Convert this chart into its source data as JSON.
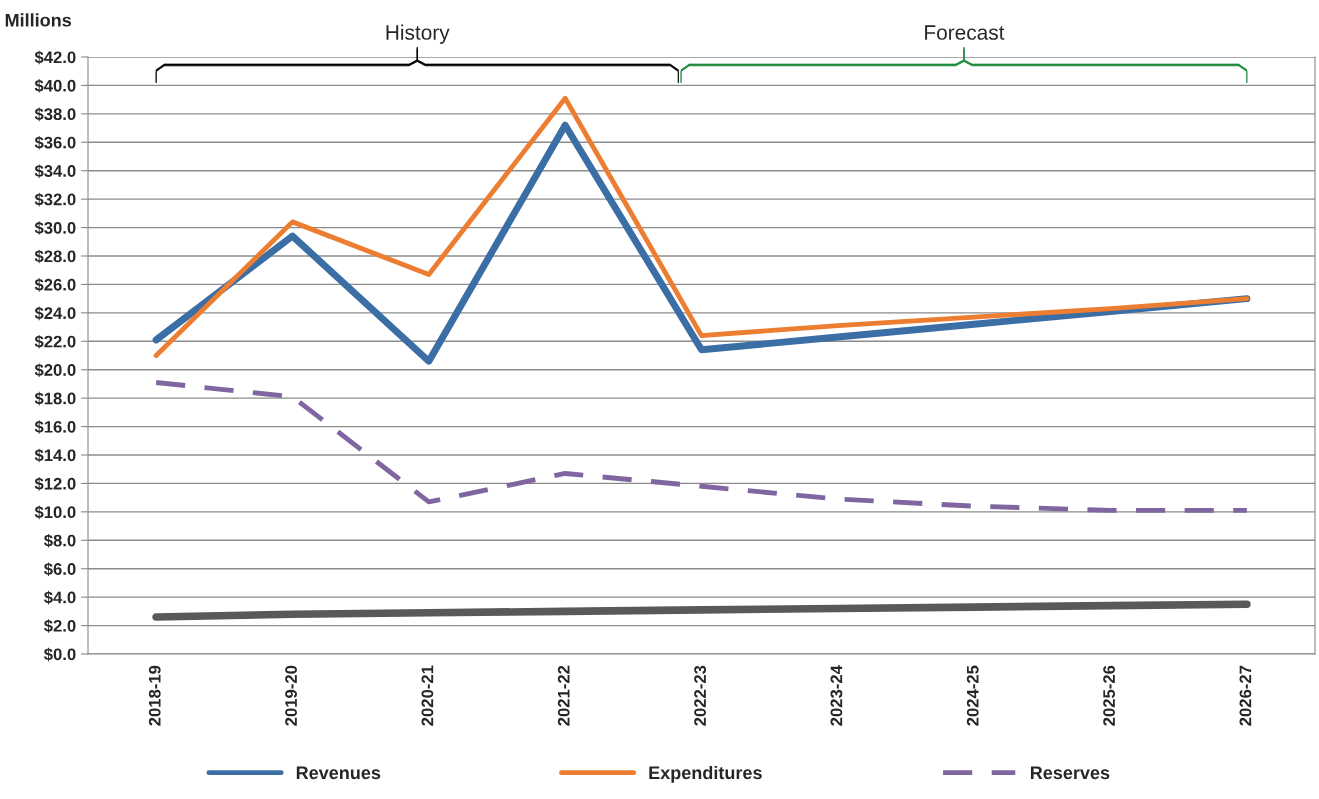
{
  "chart_data": {
    "type": "line",
    "ylabel": "Millions",
    "categories": [
      "2018-19",
      "2019-20",
      "2020-21",
      "2021-22",
      "2022-23",
      "2023-24",
      "2024-25",
      "2025-26",
      "2026-27"
    ],
    "series": [
      {
        "name": "Revenues",
        "color": "#3b6ea5",
        "values": [
          22.1,
          29.4,
          20.6,
          37.2,
          21.4,
          22.3,
          23.2,
          24.1,
          25.0
        ]
      },
      {
        "name": "Expenditures",
        "color": "#ed7d31",
        "values": [
          21.0,
          30.4,
          26.7,
          39.1,
          22.4,
          23.1,
          23.7,
          24.3,
          25.0
        ]
      },
      {
        "name": "Reserves",
        "color": "#7f66a0",
        "line_style": "dashed",
        "values": [
          19.1,
          18.1,
          10.7,
          12.7,
          11.8,
          10.9,
          10.4,
          10.1,
          10.1
        ]
      },
      {
        "color": "#595959",
        "values": [
          2.6,
          2.8,
          2.9,
          3.0,
          3.1,
          3.2,
          3.3,
          3.4,
          3.5
        ]
      }
    ],
    "ylim": [
      0,
      42
    ],
    "yticks": [
      {
        "value": 0,
        "label": "$0.0"
      },
      {
        "value": 2,
        "label": "$2.0"
      },
      {
        "value": 4,
        "label": "$4.0"
      },
      {
        "value": 6,
        "label": "$6.0"
      },
      {
        "value": 8,
        "label": "$8.0"
      },
      {
        "value": 10,
        "label": "$10.0"
      },
      {
        "value": 12,
        "label": "$12.0"
      },
      {
        "value": 14,
        "label": "$14.0"
      },
      {
        "value": 16,
        "label": "$16.0"
      },
      {
        "value": 18,
        "label": "$18.0"
      },
      {
        "value": 20,
        "label": "$20.0"
      },
      {
        "value": 22,
        "label": "$22.0"
      },
      {
        "value": 24,
        "label": "$24.0"
      },
      {
        "value": 26,
        "label": "$26.0"
      },
      {
        "value": 28,
        "label": "$28.0"
      },
      {
        "value": 30,
        "label": "$30.0"
      },
      {
        "value": 32,
        "label": "$32.0"
      },
      {
        "value": 34,
        "label": "$34.0"
      },
      {
        "value": 36,
        "label": "$36.0"
      },
      {
        "value": 38,
        "label": "$38.0"
      },
      {
        "value": 40,
        "label": "$40.0"
      },
      {
        "value": 42,
        "label": "$42.0"
      }
    ],
    "grid": "y",
    "legend": "bottom",
    "marker": "none",
    "annotations": [
      "History",
      "Forecast"
    ]
  }
}
